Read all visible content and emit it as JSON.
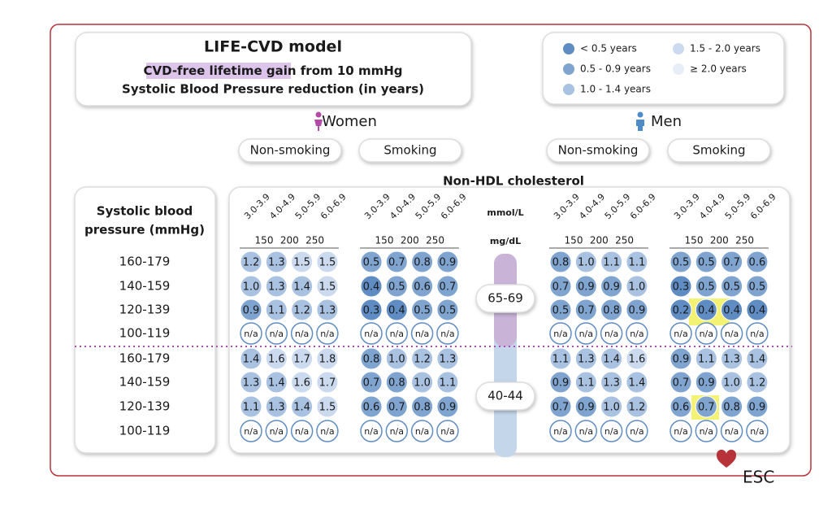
{
  "header": {
    "title": "LIFE-CVD model",
    "highlight": "CVD-free lifetime",
    "line1_rest": " gain from 10 mmHg",
    "line2": "Systolic Blood Pressure reduction (in years)"
  },
  "legend": [
    {
      "label": "< 0.5 years",
      "color": "#5f8cc2"
    },
    {
      "label": "0.5 - 0.9 years",
      "color": "#7fa4d0"
    },
    {
      "label": "1.0 - 1.4 years",
      "color": "#a9c2e1"
    },
    {
      "label": "1.5 - 2.0 years",
      "color": "#cbdaee"
    },
    {
      "label": "≥ 2.0 years",
      "color": "#e8eef7"
    }
  ],
  "groups": [
    {
      "name": "Women",
      "subgroups": [
        "Non-smoking",
        "Smoking"
      ]
    },
    {
      "name": "Men",
      "subgroups": [
        "Non-smoking",
        "Smoking"
      ]
    }
  ],
  "axis": {
    "title": "Non-HDL cholesterol",
    "mmol_unit": "mmol/L",
    "mg_unit": "mg/dL",
    "mmol": [
      "3.0-3.9",
      "4.0-4.9",
      "5.0-5.9",
      "6.0-6.9"
    ],
    "mg": [
      "150",
      "200",
      "250"
    ]
  },
  "row_header": [
    "Systolic blood",
    "pressure (mmHg)"
  ],
  "rows": [
    "160-179",
    "140-159",
    "120-139",
    "100-119",
    "160-179",
    "140-159",
    "120-139",
    "100-119"
  ],
  "ages": [
    "65-69",
    "40-44"
  ],
  "panels": [
    [
      [
        "1.2",
        "1.3",
        "1.5",
        "1.5"
      ],
      [
        "1.0",
        "1.3",
        "1.4",
        "1.5"
      ],
      [
        "0.9",
        "1.1",
        "1.2",
        "1.3"
      ],
      [
        "n/a",
        "n/a",
        "n/a",
        "n/a"
      ],
      [
        "1.4",
        "1.6",
        "1.7",
        "1.8"
      ],
      [
        "1.3",
        "1.4",
        "1.6",
        "1.7"
      ],
      [
        "1.1",
        "1.3",
        "1.4",
        "1.5"
      ],
      [
        "n/a",
        "n/a",
        "n/a",
        "n/a"
      ]
    ],
    [
      [
        "0.5",
        "0.7",
        "0.8",
        "0.9"
      ],
      [
        "0.4",
        "0.5",
        "0.6",
        "0.7"
      ],
      [
        "0.3",
        "0.4",
        "0.5",
        "0.5"
      ],
      [
        "n/a",
        "n/a",
        "n/a",
        "n/a"
      ],
      [
        "0.8",
        "1.0",
        "1.2",
        "1.3"
      ],
      [
        "0.7",
        "0.8",
        "1.0",
        "1.1"
      ],
      [
        "0.6",
        "0.7",
        "0.8",
        "0.9"
      ],
      [
        "n/a",
        "n/a",
        "n/a",
        "n/a"
      ]
    ],
    [
      [
        "0.8",
        "1.0",
        "1.1",
        "1.1"
      ],
      [
        "0.7",
        "0.9",
        "0.9",
        "1.0"
      ],
      [
        "0.5",
        "0.7",
        "0.8",
        "0.9"
      ],
      [
        "n/a",
        "n/a",
        "n/a",
        "n/a"
      ],
      [
        "1.1",
        "1.3",
        "1.4",
        "1.6"
      ],
      [
        "0.9",
        "1.1",
        "1.3",
        "1.4"
      ],
      [
        "0.7",
        "0.9",
        "1.0",
        "1.2"
      ],
      [
        "n/a",
        "n/a",
        "n/a",
        "n/a"
      ]
    ],
    [
      [
        "0.5",
        "0.5",
        "0.7",
        "0.6"
      ],
      [
        "0.3",
        "0.5",
        "0.5",
        "0.5"
      ],
      [
        "0.2",
        "0.4",
        "0.4",
        "0.4"
      ],
      [
        "n/a",
        "n/a",
        "n/a",
        "n/a"
      ],
      [
        "0.9",
        "1.1",
        "1.3",
        "1.4"
      ],
      [
        "0.7",
        "0.9",
        "1.0",
        "1.2"
      ],
      [
        "0.6",
        "0.7",
        "0.8",
        "0.9"
      ],
      [
        "n/a",
        "n/a",
        "n/a",
        "n/a"
      ]
    ]
  ],
  "brand": "ESC"
}
